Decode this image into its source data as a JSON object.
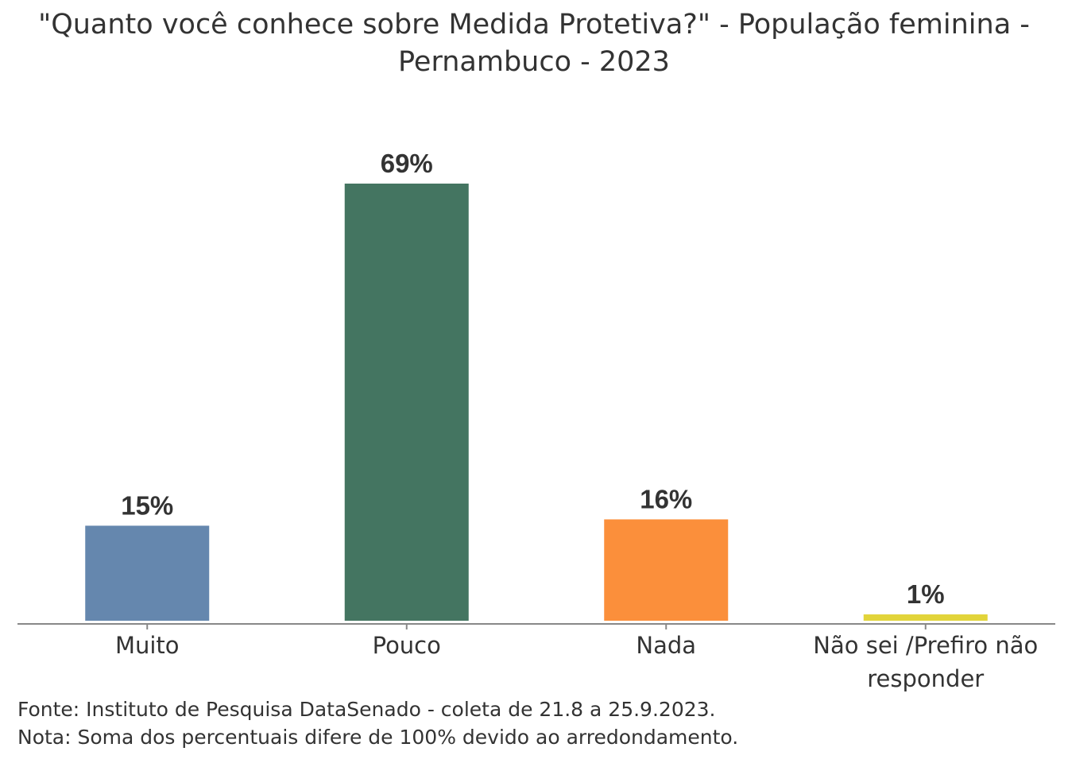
{
  "chart_data": {
    "type": "bar",
    "title": "\"Quanto você conhece sobre Medida Protetiva?\" - População feminina - Pernambuco - 2023",
    "categories": [
      "Muito",
      "Pouco",
      "Nada",
      "Não sei /Prefiro não responder"
    ],
    "category_lines": [
      [
        "Muito"
      ],
      [
        "Pouco"
      ],
      [
        "Nada"
      ],
      [
        "Não sei /Prefiro não",
        "responder"
      ]
    ],
    "values": [
      15,
      69,
      16,
      1
    ],
    "data_labels": [
      "15%",
      "69%",
      "16%",
      "1%"
    ],
    "colors": [
      "#6587AE",
      "#447561",
      "#FB8F3B",
      "#E2D43A"
    ],
    "ylim": [
      0,
      69
    ],
    "grid": false,
    "legend": "none"
  },
  "footer": {
    "source": "Fonte: Instituto de Pesquisa DataSenado - coleta de 21.8 a 25.9.2023.",
    "note": "Nota: Soma dos percentuais difere de 100% devido ao arredondamento."
  }
}
